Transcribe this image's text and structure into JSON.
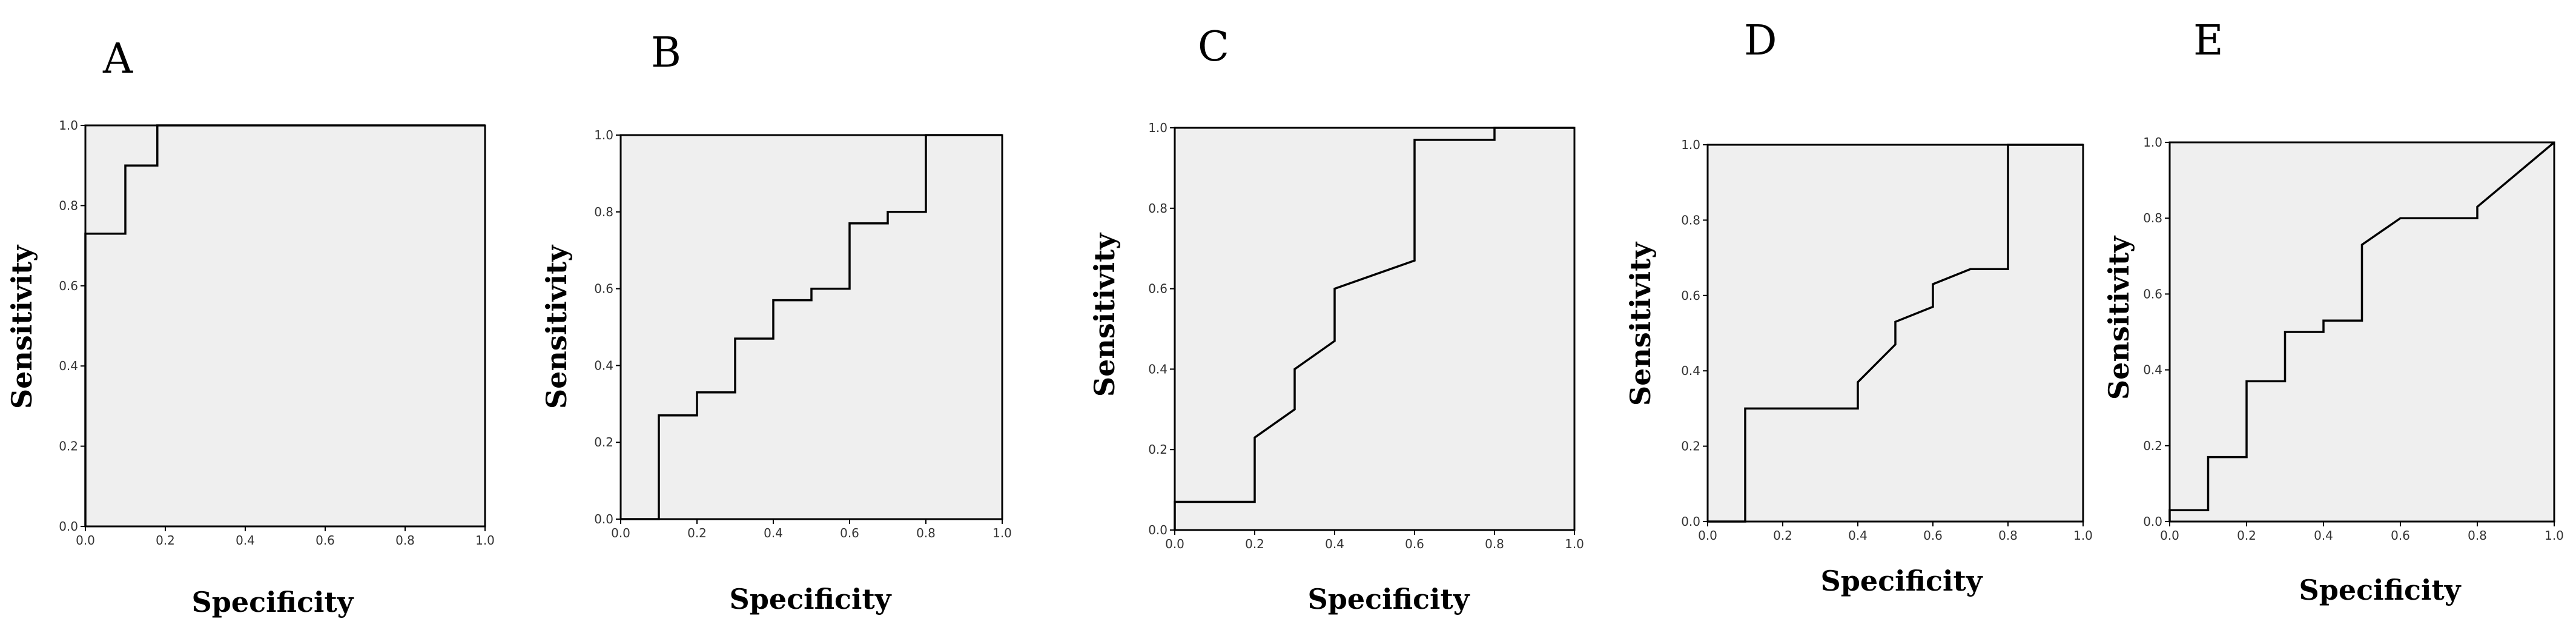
{
  "chart_data": [
    {
      "type": "line",
      "title": "A",
      "xlabel": "Specificity",
      "ylabel": "Sensitivity",
      "xlim": [
        0,
        1
      ],
      "ylim": [
        0,
        1
      ],
      "xticks": [
        "0.0",
        "0.2",
        "0.4",
        "0.6",
        "0.8",
        "1.0"
      ],
      "yticks": [
        "0.0",
        "0.2",
        "0.4",
        "0.6",
        "0.8",
        "1.0"
      ],
      "grid": false,
      "series": [
        {
          "x": [
            0,
            0,
            0.1,
            0.1,
            0.18,
            0.18,
            1.0
          ],
          "y": [
            0,
            0.73,
            0.73,
            0.9,
            0.9,
            1.0,
            1.0
          ]
        }
      ]
    },
    {
      "type": "line",
      "title": "B",
      "xlabel": "Specificity",
      "ylabel": "Sensitivity",
      "xlim": [
        0,
        1
      ],
      "ylim": [
        0,
        1
      ],
      "xticks": [
        "0.0",
        "0.2",
        "0.4",
        "0.6",
        "0.8",
        "1.0"
      ],
      "yticks": [
        "0.0",
        "0.2",
        "0.4",
        "0.6",
        "0.8",
        "1.0"
      ],
      "grid": false,
      "series": [
        {
          "x": [
            0,
            0.1,
            0.1,
            0.2,
            0.2,
            0.3,
            0.3,
            0.4,
            0.4,
            0.5,
            0.5,
            0.6,
            0.6,
            0.7,
            0.7,
            0.8,
            0.8,
            1.0
          ],
          "y": [
            0,
            0,
            0.27,
            0.27,
            0.33,
            0.33,
            0.47,
            0.47,
            0.57,
            0.57,
            0.6,
            0.6,
            0.77,
            0.77,
            0.8,
            0.8,
            1.0,
            1.0
          ]
        }
      ]
    },
    {
      "type": "line",
      "title": "C",
      "xlabel": "Specificity",
      "ylabel": "Sensitivity",
      "xlim": [
        0,
        1
      ],
      "ylim": [
        0,
        1
      ],
      "xticks": [
        "0.0",
        "0.2",
        "0.4",
        "0.6",
        "0.8",
        "1.0"
      ],
      "yticks": [
        "0.0",
        "0.2",
        "0.4",
        "0.6",
        "0.8",
        "1.0"
      ],
      "grid": false,
      "series": [
        {
          "x": [
            0,
            0,
            0.2,
            0.2,
            0.3,
            0.3,
            0.4,
            0.4,
            0.6,
            0.6,
            0.8,
            0.8,
            1.0
          ],
          "y": [
            0,
            0.07,
            0.07,
            0.23,
            0.3,
            0.4,
            0.47,
            0.6,
            0.67,
            0.97,
            0.97,
            1.0,
            1.0
          ]
        }
      ]
    },
    {
      "type": "line",
      "title": "D",
      "xlabel": "Specificity",
      "ylabel": "Sensitivity",
      "xlim": [
        0,
        1
      ],
      "ylim": [
        0,
        1
      ],
      "xticks": [
        "0.0",
        "0.2",
        "0.4",
        "0.6",
        "0.8",
        "1.0"
      ],
      "yticks": [
        "0.0",
        "0.2",
        "0.4",
        "0.6",
        "0.8",
        "1.0"
      ],
      "grid": false,
      "series": [
        {
          "x": [
            0,
            0.1,
            0.1,
            0.4,
            0.4,
            0.5,
            0.5,
            0.6,
            0.6,
            0.7,
            0.8,
            0.8,
            1.0
          ],
          "y": [
            0,
            0,
            0.3,
            0.3,
            0.37,
            0.47,
            0.53,
            0.57,
            0.63,
            0.67,
            0.67,
            1.0,
            1.0
          ]
        }
      ]
    },
    {
      "type": "line",
      "title": "E",
      "xlabel": "Specificity",
      "ylabel": "Sensitivity",
      "xlim": [
        0,
        1
      ],
      "ylim": [
        0,
        1
      ],
      "xticks": [
        "0.0",
        "0.2",
        "0.4",
        "0.6",
        "0.8",
        "1.0"
      ],
      "yticks": [
        "0.0",
        "0.2",
        "0.4",
        "0.6",
        "0.8",
        "1.0"
      ],
      "grid": false,
      "series": [
        {
          "x": [
            0,
            0,
            0.1,
            0.1,
            0.2,
            0.2,
            0.3,
            0.3,
            0.4,
            0.4,
            0.5,
            0.5,
            0.6,
            0.8,
            0.8,
            1.0
          ],
          "y": [
            0,
            0.03,
            0.03,
            0.17,
            0.17,
            0.37,
            0.37,
            0.5,
            0.5,
            0.53,
            0.53,
            0.73,
            0.8,
            0.8,
            0.83,
            1.0
          ]
        }
      ]
    }
  ]
}
